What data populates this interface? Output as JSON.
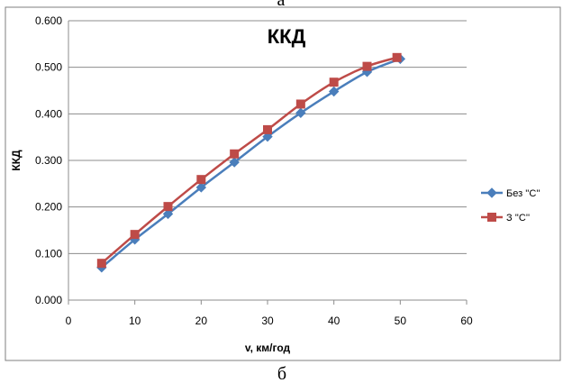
{
  "top_caption": "а",
  "bottom_caption": "б",
  "colors": {
    "series_1": "#4a7ebb",
    "series_2": "#be4b48",
    "gridline": "#8c8c8c",
    "frame": "#7f7f7f"
  },
  "chart_data": {
    "type": "line",
    "title": "ККД",
    "xlabel": "v, км/год",
    "ylabel": "ККД",
    "xlim": [
      0,
      60
    ],
    "ylim": [
      0,
      0.6
    ],
    "x_ticks": [
      "0",
      "10",
      "20",
      "30",
      "40",
      "50",
      "60"
    ],
    "y_ticks": [
      "0.000",
      "0.100",
      "0.200",
      "0.300",
      "0.400",
      "0.500",
      "0.600"
    ],
    "grid": "horizontal",
    "legend_position": "right",
    "series": [
      {
        "name": "Без ''С''",
        "marker": "diamond",
        "x": [
          5,
          10,
          15,
          20,
          25,
          30,
          35,
          40,
          45,
          50
        ],
        "y": [
          0.07,
          0.13,
          0.185,
          0.242,
          0.296,
          0.351,
          0.402,
          0.448,
          0.49,
          0.518
        ]
      },
      {
        "name": "З ''С''",
        "marker": "square",
        "x": [
          5,
          10,
          15,
          20,
          25,
          30,
          35,
          40,
          45,
          49.5
        ],
        "y": [
          0.079,
          0.141,
          0.201,
          0.259,
          0.314,
          0.366,
          0.421,
          0.468,
          0.502,
          0.521
        ]
      }
    ]
  }
}
